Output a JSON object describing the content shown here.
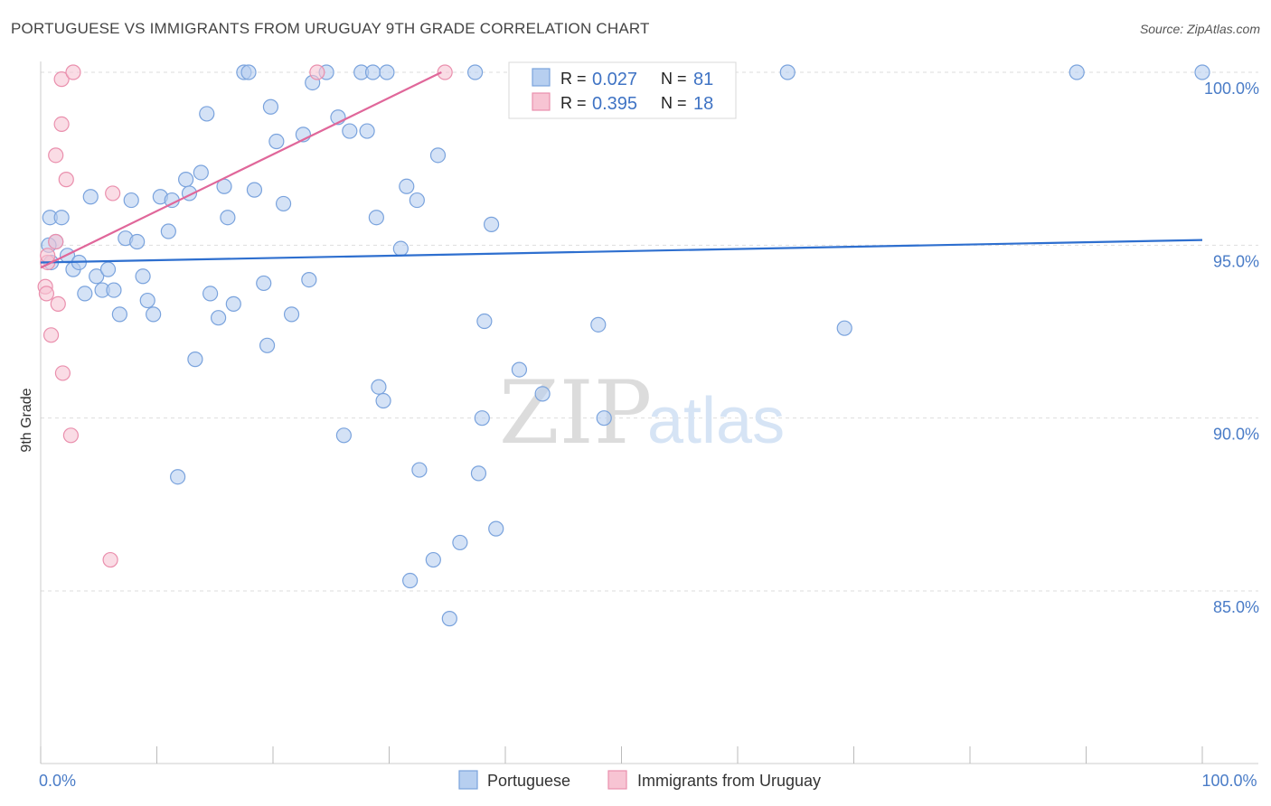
{
  "title": "PORTUGUESE VS IMMIGRANTS FROM URUGUAY 9TH GRADE CORRELATION CHART",
  "source": "Source: ZipAtlas.com",
  "colors": {
    "blue_fill": "#b7cff0",
    "blue_stroke": "#7aa3dd",
    "blue_line": "#2e6fcf",
    "pink_fill": "#f7c4d3",
    "pink_stroke": "#ea8fad",
    "pink_line": "#e0679a",
    "axis_text": "#4a7cc7",
    "grid": "#dddddd"
  },
  "legend_box": {
    "rows": [
      {
        "r_label": "R =",
        "r_value": "0.027",
        "n_label": "N =",
        "n_value": "81",
        "series": "blue"
      },
      {
        "r_label": "R =",
        "r_value": "0.395",
        "n_label": "N =",
        "n_value": "18",
        "series": "pink"
      }
    ]
  },
  "bottom_legend": {
    "items": [
      {
        "label": "Portuguese",
        "series": "blue"
      },
      {
        "label": "Immigrants from Uruguay",
        "series": "pink"
      }
    ]
  },
  "watermark": {
    "zip": "ZIP",
    "atlas": "atlas"
  },
  "chart_data": {
    "type": "scatter",
    "title": "PORTUGUESE VS IMMIGRANTS FROM URUGUAY 9TH GRADE CORRELATION CHART",
    "xlabel": "",
    "ylabel": "9th Grade",
    "xlim": [
      0,
      100
    ],
    "ylim": [
      80.5,
      100.7
    ],
    "x_tick_labels": [
      {
        "value": 0,
        "label": "0.0%"
      },
      {
        "value": 100,
        "label": "100.0%"
      }
    ],
    "y_tick_labels": [
      {
        "value": 100,
        "label": "100.0%"
      },
      {
        "value": 95,
        "label": "95.0%"
      },
      {
        "value": 90,
        "label": "90.0%"
      },
      {
        "value": 85,
        "label": "85.0%"
      }
    ],
    "gridlines_y": [
      100,
      95,
      90,
      85
    ],
    "series": [
      {
        "name": "Portuguese",
        "color": "blue",
        "R": 0.027,
        "N": 81,
        "trend": {
          "x0": 0,
          "y0": 94.5,
          "x1": 100,
          "y1": 95.15
        },
        "points": [
          [
            0.8,
            95.8
          ],
          [
            1.8,
            95.8
          ],
          [
            1.3,
            95.1
          ],
          [
            2.3,
            94.7
          ],
          [
            2.8,
            94.3
          ],
          [
            3.3,
            94.5
          ],
          [
            3.8,
            93.6
          ],
          [
            4.3,
            96.4
          ],
          [
            4.8,
            94.1
          ],
          [
            5.3,
            93.7
          ],
          [
            5.8,
            94.3
          ],
          [
            6.3,
            93.7
          ],
          [
            6.8,
            93.0
          ],
          [
            7.3,
            95.2
          ],
          [
            7.8,
            96.3
          ],
          [
            8.3,
            95.1
          ],
          [
            8.8,
            94.1
          ],
          [
            9.2,
            93.4
          ],
          [
            9.7,
            93.0
          ],
          [
            10.3,
            96.4
          ],
          [
            11.0,
            95.4
          ],
          [
            11.3,
            96.3
          ],
          [
            11.8,
            88.3
          ],
          [
            12.5,
            96.9
          ],
          [
            12.8,
            96.5
          ],
          [
            13.3,
            91.7
          ],
          [
            13.8,
            97.1
          ],
          [
            14.3,
            98.8
          ],
          [
            14.6,
            93.6
          ],
          [
            15.3,
            92.9
          ],
          [
            15.8,
            96.7
          ],
          [
            16.1,
            95.8
          ],
          [
            16.6,
            93.3
          ],
          [
            17.5,
            100.0
          ],
          [
            17.9,
            100.0
          ],
          [
            18.4,
            96.6
          ],
          [
            19.2,
            93.9
          ],
          [
            19.5,
            92.1
          ],
          [
            19.8,
            99.0
          ],
          [
            20.3,
            98.0
          ],
          [
            20.9,
            96.2
          ],
          [
            21.6,
            93.0
          ],
          [
            22.6,
            98.2
          ],
          [
            23.1,
            94.0
          ],
          [
            23.4,
            99.7
          ],
          [
            24.6,
            100.0
          ],
          [
            25.6,
            98.7
          ],
          [
            26.1,
            89.5
          ],
          [
            26.6,
            98.3
          ],
          [
            27.6,
            100.0
          ],
          [
            28.1,
            98.3
          ],
          [
            28.6,
            100.0
          ],
          [
            28.9,
            95.8
          ],
          [
            29.1,
            90.9
          ],
          [
            29.5,
            90.5
          ],
          [
            29.8,
            100.0
          ],
          [
            31.0,
            94.9
          ],
          [
            31.5,
            96.7
          ],
          [
            31.8,
            85.3
          ],
          [
            32.4,
            96.3
          ],
          [
            32.6,
            88.5
          ],
          [
            33.8,
            85.9
          ],
          [
            34.2,
            97.6
          ],
          [
            35.2,
            84.2
          ],
          [
            36.1,
            86.4
          ],
          [
            37.4,
            100.0
          ],
          [
            37.7,
            88.4
          ],
          [
            38.0,
            90.0
          ],
          [
            38.2,
            92.8
          ],
          [
            38.8,
            95.6
          ],
          [
            39.2,
            86.8
          ],
          [
            41.2,
            91.4
          ],
          [
            43.2,
            90.7
          ],
          [
            48.0,
            92.7
          ],
          [
            48.5,
            90.0
          ],
          [
            64.3,
            100.0
          ],
          [
            69.2,
            92.6
          ],
          [
            89.2,
            100.0
          ],
          [
            100.0,
            100.0
          ],
          [
            0.9,
            94.5
          ],
          [
            0.7,
            95.0
          ]
        ]
      },
      {
        "name": "Immigrants from Uruguay",
        "color": "pink",
        "R": 0.395,
        "N": 18,
        "trend": {
          "x0": 0,
          "y0": 94.35,
          "x1": 34.5,
          "y1": 100.0
        },
        "points": [
          [
            1.8,
            99.8
          ],
          [
            2.8,
            100.0
          ],
          [
            1.8,
            98.5
          ],
          [
            1.3,
            97.6
          ],
          [
            2.2,
            96.9
          ],
          [
            6.2,
            96.5
          ],
          [
            1.3,
            95.1
          ],
          [
            0.6,
            94.5
          ],
          [
            0.4,
            93.8
          ],
          [
            0.5,
            93.6
          ],
          [
            1.5,
            93.3
          ],
          [
            0.9,
            92.4
          ],
          [
            1.9,
            91.3
          ],
          [
            2.6,
            89.5
          ],
          [
            6.0,
            85.9
          ],
          [
            23.8,
            100.0
          ],
          [
            34.8,
            100.0
          ],
          [
            0.6,
            94.7
          ]
        ]
      }
    ]
  }
}
